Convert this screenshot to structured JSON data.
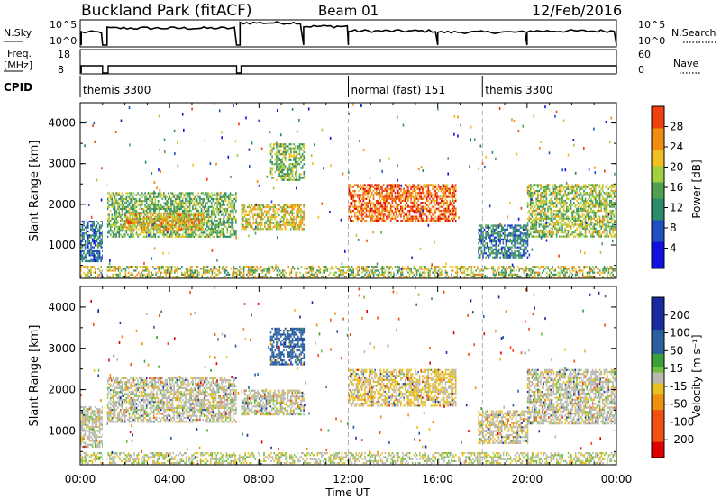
{
  "header": {
    "station": "Buckland Park (fitACF)",
    "beam": "Beam 01",
    "date": "12/Feb/2016"
  },
  "time_axis": {
    "ticks": [
      "00:00",
      "04:00",
      "08:00",
      "12:00",
      "16:00",
      "20:00",
      "00:00"
    ],
    "label": "Time UT"
  },
  "nsky": {
    "label": "N.Sky",
    "tick_high": "10^5",
    "tick_low": "10^0"
  },
  "nsearch": {
    "label": "N.Search",
    "tick_high": "10^5",
    "tick_low": "10^0"
  },
  "freq": {
    "label_line1": "Freq.",
    "label_line2": "[MHz]",
    "tick_high": "18",
    "tick_low": "8"
  },
  "nave": {
    "label": "Nave",
    "tick_high": "60",
    "tick_low": "0"
  },
  "cpid": {
    "label": "CPID",
    "segments": [
      {
        "name": "themis 3300",
        "start_hour": 0,
        "end_hour": 12
      },
      {
        "name": "normal (fast) 151",
        "start_hour": 12,
        "end_hour": 18
      },
      {
        "name": "themis 3300",
        "start_hour": 18,
        "end_hour": 24
      }
    ]
  },
  "chart_data": [
    {
      "type": "heatmap",
      "title": "",
      "xlabel": "Time UT",
      "ylabel": "Slant Range [km]",
      "xlim": [
        0,
        24
      ],
      "ylim": [
        180,
        4500
      ],
      "yticks": [
        "1000",
        "2000",
        "3000",
        "4000"
      ],
      "colorbar": {
        "label": "Power [dB]",
        "ticks": [
          "4",
          "8",
          "12",
          "16",
          "20",
          "24",
          "28"
        ],
        "range": [
          0,
          30
        ]
      },
      "echo_regions": [
        {
          "t": [
            0.0,
            1.0
          ],
          "range_km": [
            600,
            1600
          ],
          "value_db": 9
        },
        {
          "t": [
            1.2,
            7.0
          ],
          "range_km": [
            1200,
            2300
          ],
          "value_db": 15
        },
        {
          "t": [
            2.0,
            5.5
          ],
          "range_km": [
            1400,
            1800
          ],
          "value_db": 22
        },
        {
          "t": [
            7.2,
            10.0
          ],
          "range_km": [
            1400,
            2000
          ],
          "value_db": 20
        },
        {
          "t": [
            8.5,
            10.0
          ],
          "range_km": [
            2600,
            3500
          ],
          "value_db": 16
        },
        {
          "t": [
            12.0,
            16.8
          ],
          "range_km": [
            1600,
            2500
          ],
          "value_db": 26
        },
        {
          "t": [
            17.8,
            20.0
          ],
          "range_km": [
            700,
            1500
          ],
          "value_db": 10
        },
        {
          "t": [
            20.0,
            24.0
          ],
          "range_km": [
            1200,
            2500
          ],
          "value_db": 17
        }
      ]
    },
    {
      "type": "heatmap",
      "title": "",
      "xlabel": "Time UT",
      "ylabel": "Slant Range [km]",
      "xlim": [
        0,
        24
      ],
      "ylim": [
        180,
        4500
      ],
      "yticks": [
        "1000",
        "2000",
        "3000",
        "4000"
      ],
      "colorbar": {
        "label": "Velocity [m s⁻¹]",
        "ticks": [
          "200",
          "100",
          "50",
          "15",
          "-15",
          "-50",
          "-100",
          "-200"
        ],
        "range": [
          -250,
          250
        ]
      },
      "echo_regions": [
        {
          "t": [
            0.0,
            1.0
          ],
          "range_km": [
            600,
            1600
          ],
          "value_ms": 0
        },
        {
          "t": [
            1.2,
            7.0
          ],
          "range_km": [
            1200,
            2300
          ],
          "value_ms": 0
        },
        {
          "t": [
            7.2,
            10.0
          ],
          "range_km": [
            1400,
            2000
          ],
          "value_ms": 0
        },
        {
          "t": [
            8.5,
            10.0
          ],
          "range_km": [
            2600,
            3500
          ],
          "value_ms": 120
        },
        {
          "t": [
            12.0,
            16.8
          ],
          "range_km": [
            1600,
            2500
          ],
          "value_ms": -20
        },
        {
          "t": [
            17.8,
            20.0
          ],
          "range_km": [
            700,
            1500
          ],
          "value_ms": -10
        },
        {
          "t": [
            20.0,
            24.0
          ],
          "range_km": [
            1200,
            2500
          ],
          "value_ms": 0
        }
      ]
    }
  ]
}
